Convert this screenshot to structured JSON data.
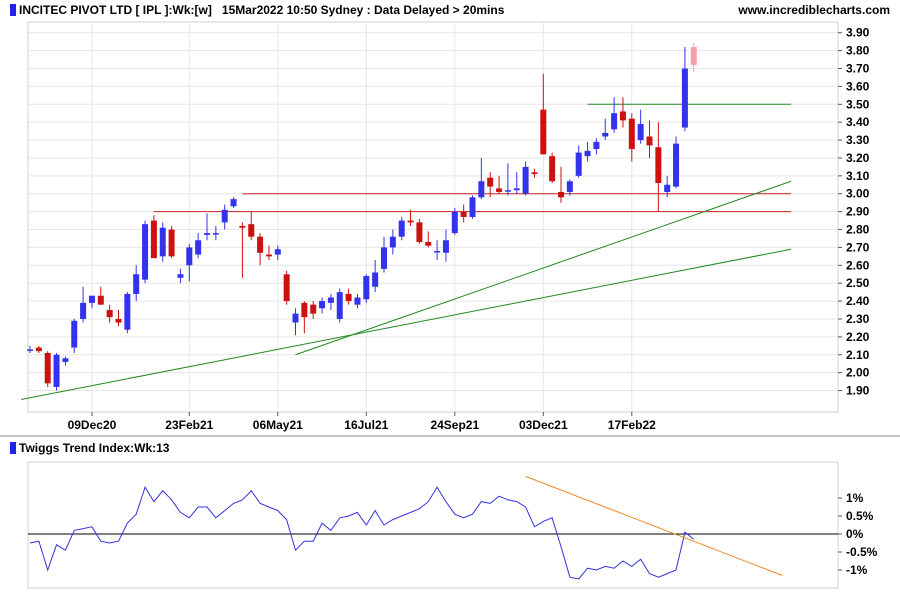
{
  "header": {
    "title": "INCITEC PIVOT LTD [ IPL ]:Wk:[w]",
    "timestamp": "15Mar2022 10:50 Sydney : Data Delayed > 20mins",
    "site": "www.incrediblecharts.com"
  },
  "colors": {
    "up": "#3333ee",
    "down": "#cc1111",
    "pending": "#f4a0a8",
    "support_trend": "#228822",
    "resistance_level": "#cc2222",
    "indicator_line": "#3333dd",
    "indicator_trend": "#ee8822",
    "grid": "#e6e6e6"
  },
  "chart_data": [
    {
      "type": "candlestick",
      "title": "INCITEC PIVOT LTD [ IPL ]:Wk:[w]",
      "ylim": [
        1.78,
        3.96
      ],
      "yticks": [
        "3.90",
        "3.80",
        "3.70",
        "3.60",
        "3.50",
        "3.40",
        "3.30",
        "3.20",
        "3.10",
        "3.00",
        "2.90",
        "2.80",
        "2.70",
        "2.60",
        "2.50",
        "2.40",
        "2.30",
        "2.20",
        "2.10",
        "2.00",
        "1.90"
      ],
      "xticks": [
        "09Dec20",
        "23Feb21",
        "06May21",
        "16Jul21",
        "24Sep21",
        "03Dec21",
        "17Feb22"
      ],
      "xtick_index": [
        7,
        18,
        28,
        38,
        48,
        58,
        68
      ],
      "candles": [
        {
          "o": 2.13,
          "h": 2.15,
          "l": 2.11,
          "c": 2.13
        },
        {
          "o": 2.14,
          "h": 2.15,
          "l": 2.11,
          "c": 2.12
        },
        {
          "o": 2.11,
          "h": 2.12,
          "l": 1.92,
          "c": 1.94
        },
        {
          "o": 1.92,
          "h": 2.11,
          "l": 1.9,
          "c": 2.1
        },
        {
          "o": 2.06,
          "h": 2.09,
          "l": 2.04,
          "c": 2.08
        },
        {
          "o": 2.14,
          "h": 2.3,
          "l": 2.11,
          "c": 2.29
        },
        {
          "o": 2.3,
          "h": 2.48,
          "l": 2.28,
          "c": 2.39
        },
        {
          "o": 2.39,
          "h": 2.43,
          "l": 2.36,
          "c": 2.43
        },
        {
          "o": 2.43,
          "h": 2.48,
          "l": 2.38,
          "c": 2.38
        },
        {
          "o": 2.35,
          "h": 2.38,
          "l": 2.28,
          "c": 2.31
        },
        {
          "o": 2.3,
          "h": 2.35,
          "l": 2.26,
          "c": 2.28
        },
        {
          "o": 2.24,
          "h": 2.45,
          "l": 2.22,
          "c": 2.44
        },
        {
          "o": 2.44,
          "h": 2.6,
          "l": 2.4,
          "c": 2.55
        },
        {
          "o": 2.52,
          "h": 2.85,
          "l": 2.5,
          "c": 2.83
        },
        {
          "o": 2.85,
          "h": 2.88,
          "l": 2.64,
          "c": 2.64
        },
        {
          "o": 2.65,
          "h": 2.84,
          "l": 2.62,
          "c": 2.81
        },
        {
          "o": 2.8,
          "h": 2.82,
          "l": 2.64,
          "c": 2.65
        },
        {
          "o": 2.53,
          "h": 2.58,
          "l": 2.5,
          "c": 2.55
        },
        {
          "o": 2.6,
          "h": 2.72,
          "l": 2.51,
          "c": 2.7
        },
        {
          "o": 2.66,
          "h": 2.78,
          "l": 2.64,
          "c": 2.74
        },
        {
          "o": 2.77,
          "h": 2.89,
          "l": 2.74,
          "c": 2.78
        },
        {
          "o": 2.78,
          "h": 2.82,
          "l": 2.74,
          "c": 2.78
        },
        {
          "o": 2.84,
          "h": 2.94,
          "l": 2.8,
          "c": 2.91
        },
        {
          "o": 2.93,
          "h": 2.98,
          "l": 2.92,
          "c": 2.97
        },
        {
          "o": 2.82,
          "h": 2.84,
          "l": 2.53,
          "c": 2.81
        },
        {
          "o": 2.83,
          "h": 2.9,
          "l": 2.74,
          "c": 2.76
        },
        {
          "o": 2.76,
          "h": 2.78,
          "l": 2.6,
          "c": 2.67
        },
        {
          "o": 2.66,
          "h": 2.71,
          "l": 2.63,
          "c": 2.65
        },
        {
          "o": 2.66,
          "h": 2.71,
          "l": 2.63,
          "c": 2.69
        },
        {
          "o": 2.55,
          "h": 2.57,
          "l": 2.38,
          "c": 2.4
        },
        {
          "o": 2.28,
          "h": 2.36,
          "l": 2.21,
          "c": 2.33
        },
        {
          "o": 2.39,
          "h": 2.4,
          "l": 2.22,
          "c": 2.31
        },
        {
          "o": 2.38,
          "h": 2.4,
          "l": 2.3,
          "c": 2.33
        },
        {
          "o": 2.36,
          "h": 2.42,
          "l": 2.33,
          "c": 2.4
        },
        {
          "o": 2.39,
          "h": 2.44,
          "l": 2.35,
          "c": 2.42
        },
        {
          "o": 2.3,
          "h": 2.47,
          "l": 2.28,
          "c": 2.45
        },
        {
          "o": 2.44,
          "h": 2.47,
          "l": 2.38,
          "c": 2.4
        },
        {
          "o": 2.38,
          "h": 2.44,
          "l": 2.36,
          "c": 2.42
        },
        {
          "o": 2.41,
          "h": 2.55,
          "l": 2.39,
          "c": 2.54
        },
        {
          "o": 2.48,
          "h": 2.63,
          "l": 2.45,
          "c": 2.56
        },
        {
          "o": 2.58,
          "h": 2.76,
          "l": 2.56,
          "c": 2.7
        },
        {
          "o": 2.7,
          "h": 2.8,
          "l": 2.66,
          "c": 2.76
        },
        {
          "o": 2.76,
          "h": 2.87,
          "l": 2.74,
          "c": 2.85
        },
        {
          "o": 2.85,
          "h": 2.91,
          "l": 2.82,
          "c": 2.84
        },
        {
          "o": 2.84,
          "h": 2.86,
          "l": 2.72,
          "c": 2.73
        },
        {
          "o": 2.73,
          "h": 2.79,
          "l": 2.7,
          "c": 2.71
        },
        {
          "o": 2.68,
          "h": 2.74,
          "l": 2.63,
          "c": 2.68
        },
        {
          "o": 2.67,
          "h": 2.8,
          "l": 2.62,
          "c": 2.74
        },
        {
          "o": 2.78,
          "h": 2.92,
          "l": 2.77,
          "c": 2.9
        },
        {
          "o": 2.9,
          "h": 2.94,
          "l": 2.84,
          "c": 2.87
        },
        {
          "o": 2.87,
          "h": 2.99,
          "l": 2.86,
          "c": 2.98
        },
        {
          "o": 2.98,
          "h": 3.2,
          "l": 2.97,
          "c": 3.07
        },
        {
          "o": 3.09,
          "h": 3.12,
          "l": 2.98,
          "c": 3.04
        },
        {
          "o": 3.03,
          "h": 3.1,
          "l": 3.0,
          "c": 3.01
        },
        {
          "o": 3.02,
          "h": 3.17,
          "l": 2.99,
          "c": 3.02
        },
        {
          "o": 3.02,
          "h": 3.12,
          "l": 3.0,
          "c": 3.03
        },
        {
          "o": 3.0,
          "h": 3.18,
          "l": 2.99,
          "c": 3.15
        },
        {
          "o": 3.12,
          "h": 3.14,
          "l": 3.09,
          "c": 3.11
        },
        {
          "o": 3.47,
          "h": 3.67,
          "l": 3.23,
          "c": 3.22
        },
        {
          "o": 3.21,
          "h": 3.23,
          "l": 3.06,
          "c": 3.07
        },
        {
          "o": 3.01,
          "h": 3.15,
          "l": 2.95,
          "c": 2.98
        },
        {
          "o": 3.01,
          "h": 3.08,
          "l": 2.99,
          "c": 3.07
        },
        {
          "o": 3.1,
          "h": 3.27,
          "l": 3.09,
          "c": 3.23
        },
        {
          "o": 3.21,
          "h": 3.29,
          "l": 3.18,
          "c": 3.24
        },
        {
          "o": 3.25,
          "h": 3.31,
          "l": 3.22,
          "c": 3.29
        },
        {
          "o": 3.32,
          "h": 3.42,
          "l": 3.3,
          "c": 3.34
        },
        {
          "o": 3.36,
          "h": 3.54,
          "l": 3.34,
          "c": 3.45
        },
        {
          "o": 3.46,
          "h": 3.54,
          "l": 3.37,
          "c": 3.41
        },
        {
          "o": 3.42,
          "h": 3.45,
          "l": 3.18,
          "c": 3.25
        },
        {
          "o": 3.3,
          "h": 3.47,
          "l": 3.28,
          "c": 3.39
        },
        {
          "o": 3.32,
          "h": 3.41,
          "l": 3.2,
          "c": 3.27
        },
        {
          "o": 3.26,
          "h": 3.4,
          "l": 2.9,
          "c": 3.06
        },
        {
          "o": 3.01,
          "h": 3.1,
          "l": 2.98,
          "c": 3.05
        },
        {
          "o": 3.04,
          "h": 3.32,
          "l": 3.03,
          "c": 3.28
        },
        {
          "o": 3.37,
          "h": 3.82,
          "l": 3.35,
          "c": 3.7
        },
        {
          "o": 3.82,
          "h": 3.84,
          "l": 3.68,
          "c": 3.72,
          "pending": true
        }
      ],
      "hlines": [
        {
          "y": 3.5,
          "from": 63,
          "to": 86,
          "color": "#228822"
        },
        {
          "y": 3.0,
          "from": 24,
          "to": 86,
          "color": "#cc2222"
        },
        {
          "y": 2.9,
          "from": 14,
          "to": 86,
          "color": "#cc2222"
        }
      ],
      "trendlines": [
        {
          "x1": -1,
          "y1": 1.85,
          "x2": 86,
          "y2": 2.69,
          "color": "#228822"
        },
        {
          "x1": 30,
          "y1": 2.1,
          "x2": 86,
          "y2": 3.07,
          "color": "#228822"
        }
      ]
    },
    {
      "type": "line",
      "title": "Twiggs Trend Index:Wk:13",
      "ylim": [
        -1.5,
        2.0
      ],
      "yticks": [
        "1%",
        "0.5%",
        "0%",
        "-0.5%",
        "-1%"
      ],
      "ytick_values": [
        1,
        0.5,
        0,
        -0.5,
        -1
      ],
      "values": [
        -0.25,
        -0.2,
        -1.0,
        -0.3,
        -0.45,
        0.1,
        0.15,
        0.2,
        -0.2,
        -0.25,
        -0.2,
        0.3,
        0.55,
        1.3,
        0.9,
        1.2,
        0.95,
        0.6,
        0.45,
        0.75,
        0.75,
        0.45,
        0.65,
        0.85,
        0.95,
        1.2,
        0.85,
        0.75,
        0.65,
        0.4,
        -0.45,
        -0.2,
        -0.2,
        0.3,
        0.1,
        0.45,
        0.5,
        0.6,
        0.25,
        0.65,
        0.25,
        0.4,
        0.5,
        0.6,
        0.7,
        0.9,
        1.3,
        0.9,
        0.55,
        0.45,
        0.55,
        0.9,
        0.85,
        1.05,
        0.95,
        0.9,
        0.75,
        0.2,
        0.35,
        0.45,
        -0.35,
        -1.2,
        -1.25,
        -0.95,
        -1.0,
        -0.9,
        -0.95,
        -0.75,
        -0.9,
        -0.7,
        -1.1,
        -1.2,
        -1.1,
        -1.0,
        0.05,
        -0.15
      ],
      "zero_line": 0,
      "trendline": {
        "x1": 56,
        "y1": 1.6,
        "x2": 85,
        "y2": -1.15,
        "color": "#ee8822"
      }
    }
  ]
}
